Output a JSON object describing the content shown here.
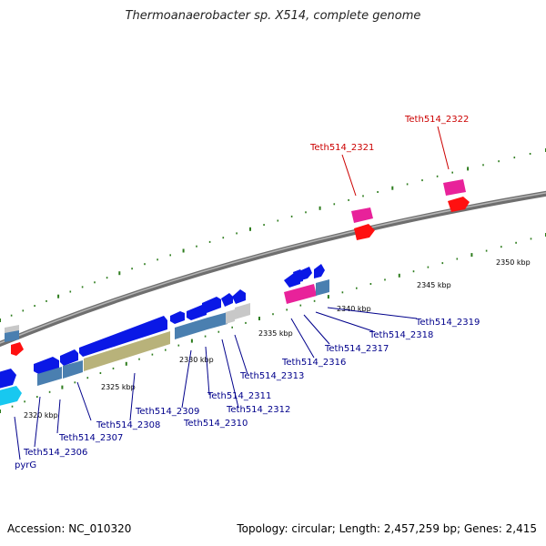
{
  "title": "Thermoanaerobacter sp. X514, complete genome",
  "footer": {
    "accession": "Accession: NC_010320",
    "summary": "Topology: circular; Length: 2,457,259 bp; Genes: 2,415"
  },
  "colors": {
    "background": "#ffffff",
    "backbone": "#8a8a8a",
    "tick": "#2e7d1e",
    "label_blue": "#00008b",
    "label_red": "#cc0000",
    "gene_blue": "#0a18e6",
    "gene_steel": "#4a7fb0",
    "gene_olive": "#b8b27a",
    "gene_gray": "#c8c8c8",
    "gene_cyan": "#18c8f0",
    "gene_magenta": "#e8229a",
    "gene_red": "#ff1010"
  },
  "scale_labels": [
    "2320 kbp",
    "2325 kbp",
    "2330 kbp",
    "2335 kbp",
    "2340 kbp",
    "2345 kbp",
    "2350 kbp"
  ],
  "gene_labels": [
    {
      "text": "pyrG",
      "color": "blue"
    },
    {
      "text": "Teth514_2306",
      "color": "blue"
    },
    {
      "text": "Teth514_2307",
      "color": "blue"
    },
    {
      "text": "Teth514_2308",
      "color": "blue"
    },
    {
      "text": "Teth514_2309",
      "color": "blue"
    },
    {
      "text": "Teth514_2310",
      "color": "blue"
    },
    {
      "text": "Teth514_2311",
      "color": "blue"
    },
    {
      "text": "Teth514_2312",
      "color": "blue"
    },
    {
      "text": "Teth514_2313",
      "color": "blue"
    },
    {
      "text": "Teth514_2316",
      "color": "blue"
    },
    {
      "text": "Teth514_2317",
      "color": "blue"
    },
    {
      "text": "Teth514_2318",
      "color": "blue"
    },
    {
      "text": "Teth514_2319",
      "color": "blue"
    },
    {
      "text": "Teth514_2321",
      "color": "red"
    },
    {
      "text": "Teth514_2322",
      "color": "red"
    }
  ]
}
